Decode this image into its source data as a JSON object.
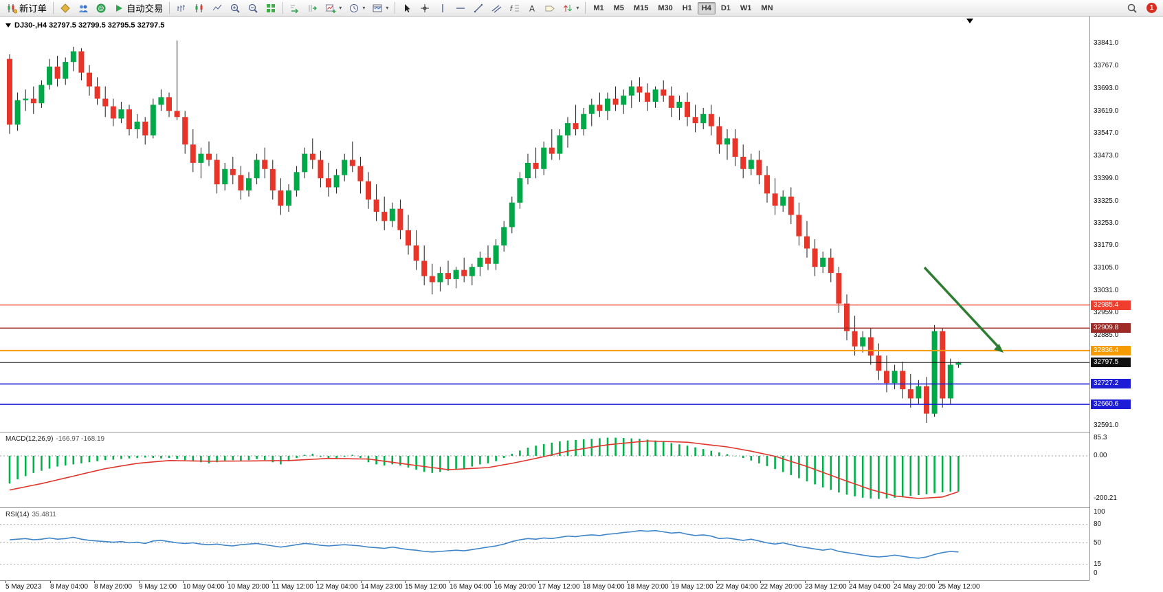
{
  "toolbar": {
    "new_order_label": "新订单",
    "auto_trading_label": "自动交易",
    "timeframes": [
      "M1",
      "M5",
      "M15",
      "M30",
      "H1",
      "H4",
      "D1",
      "W1",
      "MN"
    ],
    "active_timeframe": "H4",
    "notification_count": "1",
    "icon_names": [
      "new-order",
      "gold",
      "accounts",
      "community",
      "auto-trading",
      "bar-chart",
      "candlestick-chart",
      "line-chart",
      "zoom-in",
      "zoom-out",
      "tile-windows",
      "auto-scroll",
      "chart-shift",
      "indicators",
      "periods",
      "templates",
      "cursor",
      "crosshair",
      "vertical-line",
      "horizontal-line",
      "trendline",
      "equidistant-channel",
      "fibonacci",
      "text",
      "text-label",
      "arrows",
      "search"
    ]
  },
  "chart": {
    "title": "DJ30-,H4 32797.5 32799.5 32795.5 32797.5",
    "symbol": "DJ30-",
    "period": "H4"
  },
  "macd": {
    "name": "MACD(12,26,9)",
    "values": "-166.97 -168.19"
  },
  "rsi": {
    "name": "RSI(14)",
    "value": "35.4811"
  },
  "chart_data": {
    "type": "candlestick",
    "title": "DJ30-,H4",
    "ohlc_current": {
      "open": 32797.5,
      "high": 32799.5,
      "low": 32795.5,
      "close": 32797.5
    },
    "colors": {
      "up": "#00a847",
      "down": "#e8352a",
      "wick": "#1a1a1a",
      "macd_hist": "#00b14a",
      "macd_signal": "#e0352b",
      "rsi_line": "#3d85c8",
      "arrow": "#2e7d32"
    },
    "y_axis": {
      "min": 32591.0,
      "max": 33841.0,
      "ticks": [
        33841,
        33767,
        33693,
        33619,
        33547,
        33473,
        33399,
        33325,
        33253,
        33179,
        33105,
        33031,
        32959,
        32885,
        32591
      ]
    },
    "hlines": [
      {
        "price": 32985.4,
        "color": "#f03e2e",
        "width": 1.4
      },
      {
        "price": 32909.8,
        "color": "#9e2b25",
        "width": 1.4
      },
      {
        "price": 32836.4,
        "color": "#f59a00",
        "width": 2
      },
      {
        "price": 32797.5,
        "color": "#101010",
        "width": 1
      },
      {
        "price": 32727.2,
        "color": "#1d1dd8",
        "width": 1.6
      },
      {
        "price": 32660.6,
        "color": "#1d1dd8",
        "width": 1.6
      }
    ],
    "candles": [
      [
        33790,
        33805,
        33545,
        33575
      ],
      [
        33575,
        33680,
        33555,
        33655
      ],
      [
        33655,
        33690,
        33620,
        33660
      ],
      [
        33660,
        33700,
        33610,
        33645
      ],
      [
        33645,
        33720,
        33630,
        33705
      ],
      [
        33705,
        33790,
        33690,
        33765
      ],
      [
        33765,
        33800,
        33700,
        33725
      ],
      [
        33725,
        33795,
        33705,
        33780
      ],
      [
        33780,
        33830,
        33750,
        33815
      ],
      [
        33815,
        33825,
        33720,
        33745
      ],
      [
        33745,
        33770,
        33670,
        33700
      ],
      [
        33700,
        33730,
        33640,
        33660
      ],
      [
        33660,
        33700,
        33600,
        33635
      ],
      [
        33635,
        33660,
        33570,
        33595
      ],
      [
        33595,
        33650,
        33580,
        33625
      ],
      [
        33625,
        33640,
        33540,
        33560
      ],
      [
        33560,
        33610,
        33530,
        33585
      ],
      [
        33585,
        33600,
        33510,
        33540
      ],
      [
        33540,
        33660,
        33530,
        33640
      ],
      [
        33640,
        33690,
        33620,
        33665
      ],
      [
        33665,
        33680,
        33600,
        33620
      ],
      [
        33620,
        33850,
        33590,
        33600
      ],
      [
        33600,
        33620,
        33480,
        33510
      ],
      [
        33510,
        33560,
        33420,
        33450
      ],
      [
        33450,
        33500,
        33400,
        33480
      ],
      [
        33480,
        33520,
        33440,
        33460
      ],
      [
        33460,
        33480,
        33350,
        33380
      ],
      [
        33380,
        33450,
        33360,
        33430
      ],
      [
        33430,
        33470,
        33380,
        33410
      ],
      [
        33410,
        33440,
        33330,
        33360
      ],
      [
        33360,
        33420,
        33340,
        33400
      ],
      [
        33400,
        33480,
        33380,
        33460
      ],
      [
        33460,
        33500,
        33400,
        33430
      ],
      [
        33430,
        33460,
        33330,
        33360
      ],
      [
        33360,
        33400,
        33280,
        33310
      ],
      [
        33310,
        33380,
        33290,
        33360
      ],
      [
        33360,
        33440,
        33340,
        33420
      ],
      [
        33420,
        33500,
        33400,
        33480
      ],
      [
        33480,
        33530,
        33430,
        33460
      ],
      [
        33460,
        33490,
        33370,
        33400
      ],
      [
        33400,
        33450,
        33340,
        33370
      ],
      [
        33370,
        33430,
        33350,
        33410
      ],
      [
        33410,
        33480,
        33390,
        33460
      ],
      [
        33460,
        33520,
        33420,
        33440
      ],
      [
        33440,
        33470,
        33350,
        33390
      ],
      [
        33390,
        33420,
        33300,
        33330
      ],
      [
        33330,
        33380,
        33260,
        33290
      ],
      [
        33290,
        33340,
        33230,
        33260
      ],
      [
        33260,
        33320,
        33240,
        33300
      ],
      [
        33300,
        33330,
        33200,
        33230
      ],
      [
        33230,
        33280,
        33150,
        33180
      ],
      [
        33180,
        33230,
        33100,
        33130
      ],
      [
        33130,
        33180,
        33050,
        33080
      ],
      [
        33080,
        33120,
        33020,
        33060
      ],
      [
        33060,
        33110,
        33030,
        33090
      ],
      [
        33090,
        33130,
        33050,
        33070
      ],
      [
        33070,
        33110,
        33040,
        33100
      ],
      [
        33100,
        33140,
        33060,
        33080
      ],
      [
        33080,
        33120,
        33050,
        33110
      ],
      [
        33110,
        33160,
        33080,
        33140
      ],
      [
        33140,
        33180,
        33100,
        33120
      ],
      [
        33120,
        33200,
        33100,
        33180
      ],
      [
        33180,
        33260,
        33160,
        33240
      ],
      [
        33240,
        33340,
        33220,
        33320
      ],
      [
        33320,
        33420,
        33300,
        33400
      ],
      [
        33400,
        33480,
        33380,
        33450
      ],
      [
        33450,
        33500,
        33400,
        33430
      ],
      [
        33430,
        33520,
        33410,
        33500
      ],
      [
        33500,
        33560,
        33460,
        33480
      ],
      [
        33480,
        33560,
        33460,
        33540
      ],
      [
        33540,
        33600,
        33500,
        33580
      ],
      [
        33580,
        33640,
        33540,
        33560
      ],
      [
        33560,
        33630,
        33540,
        33610
      ],
      [
        33610,
        33660,
        33570,
        33640
      ],
      [
        33640,
        33680,
        33600,
        33620
      ],
      [
        33620,
        33680,
        33590,
        33660
      ],
      [
        33660,
        33700,
        33620,
        33640
      ],
      [
        33640,
        33690,
        33610,
        33670
      ],
      [
        33670,
        33720,
        33630,
        33700
      ],
      [
        33700,
        33730,
        33650,
        33680
      ],
      [
        33680,
        33710,
        33620,
        33650
      ],
      [
        33650,
        33700,
        33630,
        33690
      ],
      [
        33690,
        33720,
        33650,
        33670
      ],
      [
        33670,
        33700,
        33600,
        33630
      ],
      [
        33630,
        33670,
        33590,
        33650
      ],
      [
        33650,
        33680,
        33570,
        33600
      ],
      [
        33600,
        33640,
        33550,
        33580
      ],
      [
        33580,
        33630,
        33560,
        33610
      ],
      [
        33610,
        33640,
        33540,
        33570
      ],
      [
        33570,
        33600,
        33480,
        33510
      ],
      [
        33510,
        33560,
        33460,
        33530
      ],
      [
        33530,
        33560,
        33440,
        33470
      ],
      [
        33470,
        33510,
        33400,
        33430
      ],
      [
        33430,
        33480,
        33410,
        33460
      ],
      [
        33460,
        33490,
        33380,
        33410
      ],
      [
        33410,
        33440,
        33320,
        33350
      ],
      [
        33350,
        33400,
        33280,
        33310
      ],
      [
        33310,
        33360,
        33290,
        33340
      ],
      [
        33340,
        33370,
        33250,
        33280
      ],
      [
        33280,
        33320,
        33180,
        33210
      ],
      [
        33210,
        33260,
        33140,
        33170
      ],
      [
        33170,
        33200,
        33080,
        33110
      ],
      [
        33110,
        33160,
        33090,
        33140
      ],
      [
        33140,
        33170,
        33060,
        33090
      ],
      [
        33090,
        33110,
        32960,
        32990
      ],
      [
        32990,
        33020,
        32870,
        32900
      ],
      [
        32900,
        32950,
        32820,
        32850
      ],
      [
        32850,
        32900,
        32830,
        32880
      ],
      [
        32880,
        32910,
        32790,
        32820
      ],
      [
        32820,
        32860,
        32740,
        32770
      ],
      [
        32770,
        32820,
        32700,
        32730
      ],
      [
        32730,
        32790,
        32710,
        32770
      ],
      [
        32770,
        32800,
        32680,
        32710
      ],
      [
        32710,
        32760,
        32650,
        32680
      ],
      [
        32680,
        32740,
        32660,
        32720
      ],
      [
        32720,
        32750,
        32600,
        32630
      ],
      [
        32630,
        32920,
        32620,
        32900
      ],
      [
        32900,
        32910,
        32650,
        32680
      ],
      [
        32680,
        32810,
        32660,
        32790
      ],
      [
        32790,
        32800,
        32780,
        32797
      ]
    ],
    "annotations": [
      {
        "type": "arrow-down-right",
        "color": "#2e7d32"
      }
    ],
    "macd": {
      "histogram": [
        -130,
        -110,
        -95,
        -80,
        -70,
        -60,
        -50,
        -45,
        -40,
        -35,
        -30,
        -25,
        -20,
        -18,
        -15,
        -12,
        -10,
        -8,
        -10,
        -12,
        -10,
        -15,
        -20,
        -25,
        -30,
        -35,
        -30,
        -25,
        -20,
        -25,
        -20,
        -15,
        -20,
        -30,
        -40,
        -25,
        -10,
        5,
        10,
        -5,
        -10,
        -15,
        -5,
        5,
        -10,
        -30,
        -40,
        -45,
        -40,
        -45,
        -55,
        -65,
        -75,
        -80,
        -75,
        -70,
        -65,
        -60,
        -50,
        -40,
        -35,
        -25,
        -10,
        10,
        25,
        38,
        48,
        55,
        62,
        68,
        72,
        75,
        78,
        80,
        83,
        85,
        85,
        84,
        82,
        80,
        76,
        72,
        66,
        60,
        54,
        48,
        40,
        32,
        24,
        16,
        8,
        0,
        -10,
        -22,
        -35,
        -48,
        -62,
        -76,
        -90,
        -105,
        -120,
        -134,
        -148,
        -160,
        -172,
        -182,
        -190,
        -196,
        -200,
        -202,
        -200,
        -196,
        -192,
        -188,
        -184,
        -180,
        -175,
        -171,
        -168,
        -167
      ],
      "signal_anchors": [
        [
          0,
          -160
        ],
        [
          4,
          -130
        ],
        [
          8,
          -95
        ],
        [
          12,
          -60
        ],
        [
          16,
          -35
        ],
        [
          20,
          -22
        ],
        [
          25,
          -25
        ],
        [
          30,
          -24
        ],
        [
          35,
          -22
        ],
        [
          40,
          -12
        ],
        [
          45,
          -15
        ],
        [
          50,
          -40
        ],
        [
          55,
          -65
        ],
        [
          60,
          -55
        ],
        [
          63,
          -35
        ],
        [
          66,
          -12
        ],
        [
          70,
          22
        ],
        [
          75,
          52
        ],
        [
          80,
          70
        ],
        [
          85,
          64
        ],
        [
          90,
          42
        ],
        [
          93,
          22
        ],
        [
          96,
          -2
        ],
        [
          100,
          -50
        ],
        [
          104,
          -105
        ],
        [
          108,
          -158
        ],
        [
          111,
          -188
        ],
        [
          114,
          -200
        ],
        [
          117,
          -193
        ],
        [
          119,
          -168
        ]
      ],
      "scale_ticks": [
        {
          "label": "85.3",
          "v": 85.3
        },
        {
          "label": "0.00",
          "v": 0
        },
        {
          "label": "-200.21",
          "v": -200.21
        }
      ]
    },
    "rsi": {
      "values": [
        55,
        56,
        57,
        55,
        56,
        58,
        56,
        57,
        59,
        56,
        54,
        53,
        52,
        51,
        52,
        50,
        51,
        49,
        53,
        54,
        52,
        50,
        49,
        50,
        48,
        47,
        48,
        46,
        45,
        47,
        48,
        49,
        47,
        45,
        43,
        45,
        47,
        49,
        48,
        46,
        45,
        46,
        47,
        46,
        45,
        43,
        42,
        41,
        43,
        41,
        39,
        38,
        36,
        35,
        36,
        37,
        38,
        37,
        39,
        41,
        43,
        45,
        48,
        52,
        55,
        57,
        56,
        58,
        57,
        59,
        61,
        60,
        62,
        63,
        62,
        64,
        65,
        67,
        68,
        70,
        69,
        70,
        68,
        66,
        67,
        64,
        62,
        63,
        61,
        57,
        58,
        56,
        54,
        56,
        53,
        50,
        48,
        50,
        47,
        44,
        42,
        40,
        38,
        40,
        36,
        34,
        32,
        30,
        28,
        27,
        28,
        30,
        28,
        26,
        25,
        27,
        31,
        34,
        36,
        35
      ],
      "levels": [
        80,
        50,
        15
      ],
      "scale_ticks": [
        {
          "label": "100",
          "v": 100
        },
        {
          "label": "80",
          "v": 80
        },
        {
          "label": "50",
          "v": 50
        },
        {
          "label": "15",
          "v": 15
        },
        {
          "label": "0",
          "v": 0
        }
      ]
    },
    "time_labels": [
      "5 May 2023",
      "8 May 04:00",
      "8 May 20:00",
      "9 May 12:00",
      "10 May 04:00",
      "10 May 20:00",
      "11 May 12:00",
      "12 May 04:00",
      "14 May 23:00",
      "15 May 12:00",
      "16 May 04:00",
      "16 May 20:00",
      "17 May 12:00",
      "18 May 04:00",
      "18 May 20:00",
      "19 May 12:00",
      "22 May 04:00",
      "22 May 20:00",
      "23 May 12:00",
      "24 May 04:00",
      "24 May 20:00",
      "25 May 12:00"
    ]
  }
}
